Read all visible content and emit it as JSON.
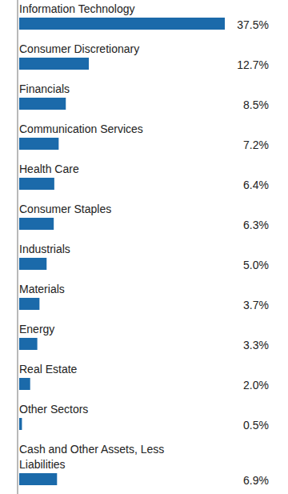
{
  "chart_data": {
    "type": "bar",
    "orientation": "horizontal",
    "categories": [
      "Information Technology",
      "Consumer Discretionary",
      "Financials",
      "Communication Services",
      "Health Care",
      "Consumer Staples",
      "Industrials",
      "Materials",
      "Energy",
      "Real Estate",
      "Other Sectors",
      "Cash and Other Assets, Less Liabilities"
    ],
    "values": [
      37.5,
      12.7,
      8.5,
      7.2,
      6.4,
      6.3,
      5.0,
      3.7,
      3.3,
      2.0,
      0.5,
      6.9
    ],
    "value_labels": [
      "37.5%",
      "12.7%",
      "8.5%",
      "7.2%",
      "6.4%",
      "6.3%",
      "5.0%",
      "3.7%",
      "3.3%",
      "2.0%",
      "0.5%",
      "6.9%"
    ],
    "color": "#1b6aaa",
    "xlim": [
      0,
      37.5
    ],
    "data_labels": true,
    "tick_labels": "y"
  }
}
